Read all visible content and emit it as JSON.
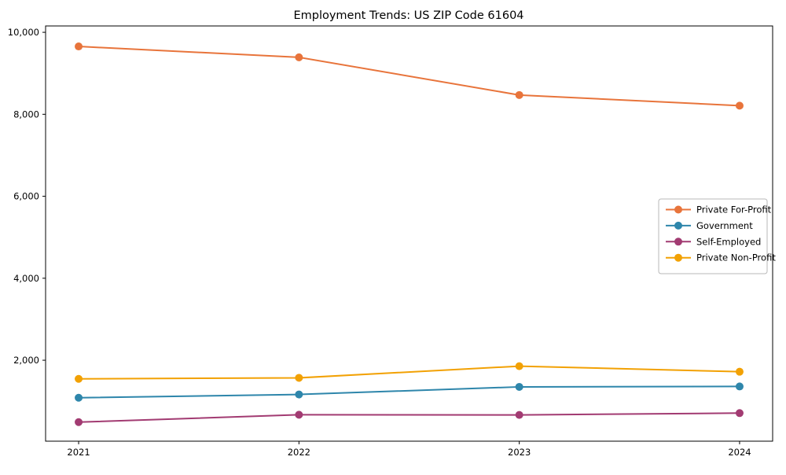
{
  "chart_data": {
    "type": "line",
    "title": "Employment Trends: US ZIP Code 61604",
    "categories": [
      2021,
      2022,
      2023,
      2024
    ],
    "series": [
      {
        "name": "Private For-Profit",
        "color": "#E8743B",
        "values": [
          9655,
          9390,
          8470,
          8210
        ]
      },
      {
        "name": "Government",
        "color": "#2E86AB",
        "values": [
          1085,
          1165,
          1350,
          1360
        ]
      },
      {
        "name": "Self-Employed",
        "color": "#A23B72",
        "values": [
          490,
          670,
          665,
          710
        ]
      },
      {
        "name": "Private Non-Profit",
        "color": "#F2A104",
        "values": [
          1545,
          1570,
          1855,
          1720
        ]
      }
    ],
    "xlabel": "",
    "ylabel": "",
    "xlim": [
      2020.85,
      2024.15
    ],
    "ylim": [
      25,
      10155
    ],
    "yticks": [
      2000,
      4000,
      6000,
      8000,
      10000
    ],
    "grid": false,
    "legend_position": "center-right",
    "colors": {
      "background": "#ffffff",
      "axis": "#000000",
      "legend_border": "#b8b8b8",
      "legend_background": "#ffffff"
    }
  }
}
